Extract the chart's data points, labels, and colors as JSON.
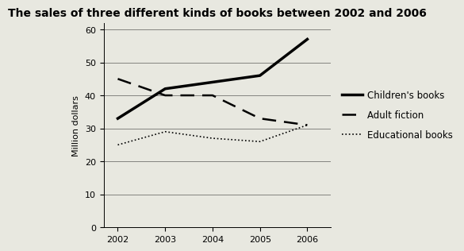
{
  "title": "The sales of three different kinds of books between 2002 and 2006",
  "years": [
    2002,
    2003,
    2004,
    2005,
    2006
  ],
  "children_books": [
    33,
    42,
    44,
    46,
    57
  ],
  "adult_fiction": [
    45,
    40,
    40,
    33,
    31
  ],
  "educational_books": [
    25,
    29,
    27,
    26,
    31
  ],
  "ylabel": "Million dollars",
  "ylim": [
    0,
    62
  ],
  "yticks": [
    0,
    10,
    20,
    30,
    40,
    50,
    60
  ],
  "xlim": [
    2001.7,
    2006.5
  ],
  "legend_children": "Children's books",
  "legend_adult": "Adult fiction",
  "legend_educational": "Educational books",
  "line_color": "black",
  "bg_color": "#e8e8e0",
  "title_fontsize": 10,
  "label_fontsize": 8,
  "tick_fontsize": 8,
  "legend_fontsize": 8.5
}
